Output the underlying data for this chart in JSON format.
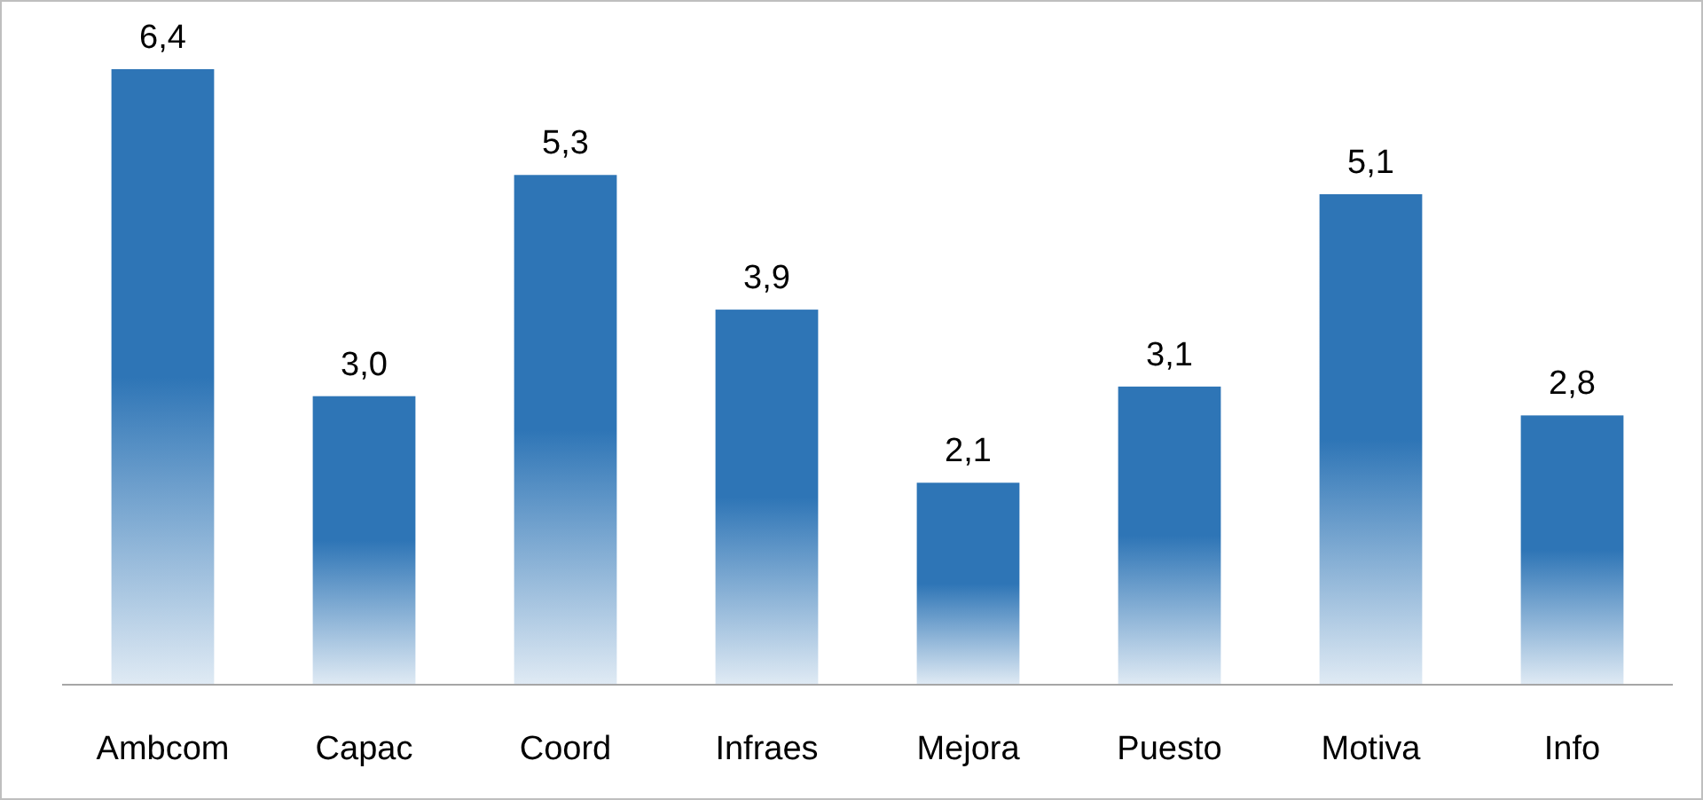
{
  "chart_data": {
    "type": "bar",
    "categories": [
      "Ambcom",
      "Capac",
      "Coord",
      "Infraes",
      "Mejora",
      "Puesto",
      "Motiva",
      "Info"
    ],
    "values": [
      6.4,
      3.0,
      5.3,
      3.9,
      2.1,
      3.1,
      5.1,
      2.8
    ],
    "value_labels": [
      "6,4",
      "3,0",
      "5,3",
      "3,9",
      "2,1",
      "3,1",
      "5,1",
      "2,8"
    ],
    "color": "#2e75b6"
  }
}
